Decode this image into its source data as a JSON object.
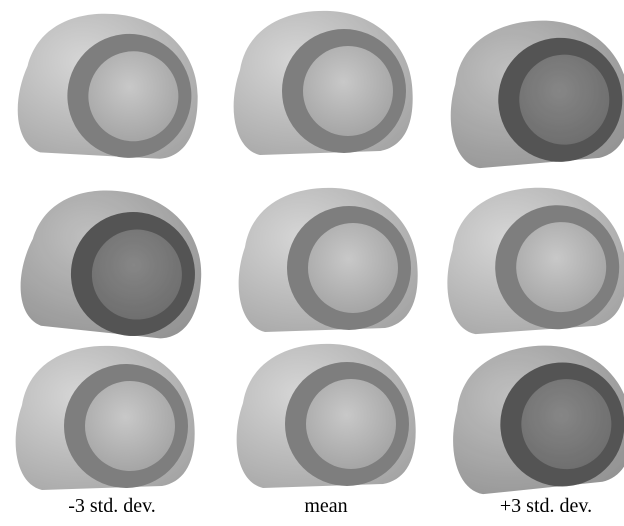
{
  "columns": [
    "-3 std. dev.",
    "mean",
    "+3 std. dev."
  ]
}
